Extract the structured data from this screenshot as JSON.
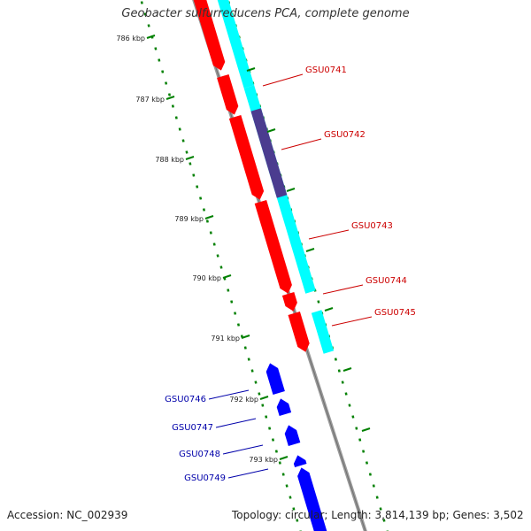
{
  "map_title": "Geobacter sulfurreducens PCA, complete genome",
  "accession_text": "Accession: NC_002939",
  "topology_text": "Topology: circular; Length: 3,814,139 bp; Genes: 3,502",
  "tick_labels": [
    "786 kbp",
    "787 kbp",
    "788 kbp",
    "789 kbp",
    "790 kbp",
    "791 kbp",
    "792 kbp",
    "793 kbp"
  ],
  "colors": {
    "forward_cds": "#ff0000",
    "reverse_cds": "#0000ff",
    "forward_feature": "#00ffff",
    "forward_feature_dark": "#4b3c8f",
    "backbone": "#999999",
    "tick_marks": "#008000",
    "forward_label": "#cc0000",
    "reverse_label": "#0000aa"
  },
  "genes": [
    {
      "name": "GSU0741",
      "strand": "+"
    },
    {
      "name": "GSU0742",
      "strand": "+"
    },
    {
      "name": "GSU0743",
      "strand": "+"
    },
    {
      "name": "GSU0744",
      "strand": "+"
    },
    {
      "name": "GSU0745",
      "strand": "+"
    },
    {
      "name": "GSU0746",
      "strand": "-"
    },
    {
      "name": "GSU0747",
      "strand": "-"
    },
    {
      "name": "GSU0748",
      "strand": "-"
    },
    {
      "name": "GSU0749",
      "strand": "-"
    }
  ]
}
